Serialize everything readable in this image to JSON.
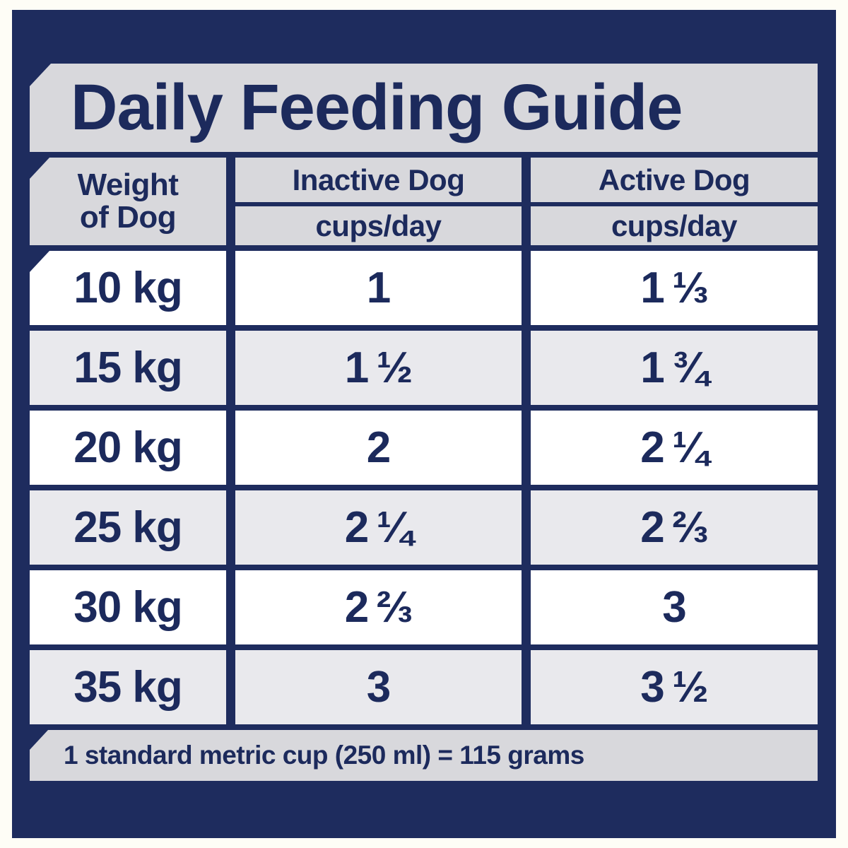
{
  "title": "Daily Feeding Guide",
  "table": {
    "weight_header_line1": "Weight",
    "weight_header_line2": "of Dog",
    "columns": [
      {
        "label": "Inactive Dog",
        "sublabel": "cups/day"
      },
      {
        "label": "Active Dog",
        "sublabel": "cups/day"
      }
    ],
    "rows": [
      {
        "weight": "10 kg",
        "inactive": "1",
        "active": "1 ⅓"
      },
      {
        "weight": "15 kg",
        "inactive": "1 ½",
        "active": "1 ¾"
      },
      {
        "weight": "20 kg",
        "inactive": "2",
        "active": "2 ¼"
      },
      {
        "weight": "25 kg",
        "inactive": "2 ¼",
        "active": "2 ⅔"
      },
      {
        "weight": "30 kg",
        "inactive": "2 ⅔",
        "active": "3"
      },
      {
        "weight": "35 kg",
        "inactive": "3",
        "active": "3 ½"
      }
    ]
  },
  "footnote": "1 standard metric cup (250 ml) = 115 grams",
  "colors": {
    "navy": "#1e2c5e",
    "text_navy": "#1c2a5c",
    "header_gray": "#d8d8dc",
    "row_gray": "#e9e9ed",
    "row_white": "#ffffff",
    "page_bg": "#fefdf6"
  },
  "chart_data": {
    "type": "table",
    "title": "Daily Feeding Guide",
    "columns": [
      "Weight of Dog",
      "Inactive Dog cups/day",
      "Active Dog cups/day"
    ],
    "weights_kg": [
      10,
      15,
      20,
      25,
      30,
      35
    ],
    "inactive_cups_per_day": [
      1,
      1.5,
      2,
      2.25,
      2.667,
      3
    ],
    "active_cups_per_day": [
      1.333,
      1.75,
      2.25,
      2.667,
      3,
      3.5
    ],
    "note": "1 standard metric cup (250 ml) = 115 grams"
  }
}
